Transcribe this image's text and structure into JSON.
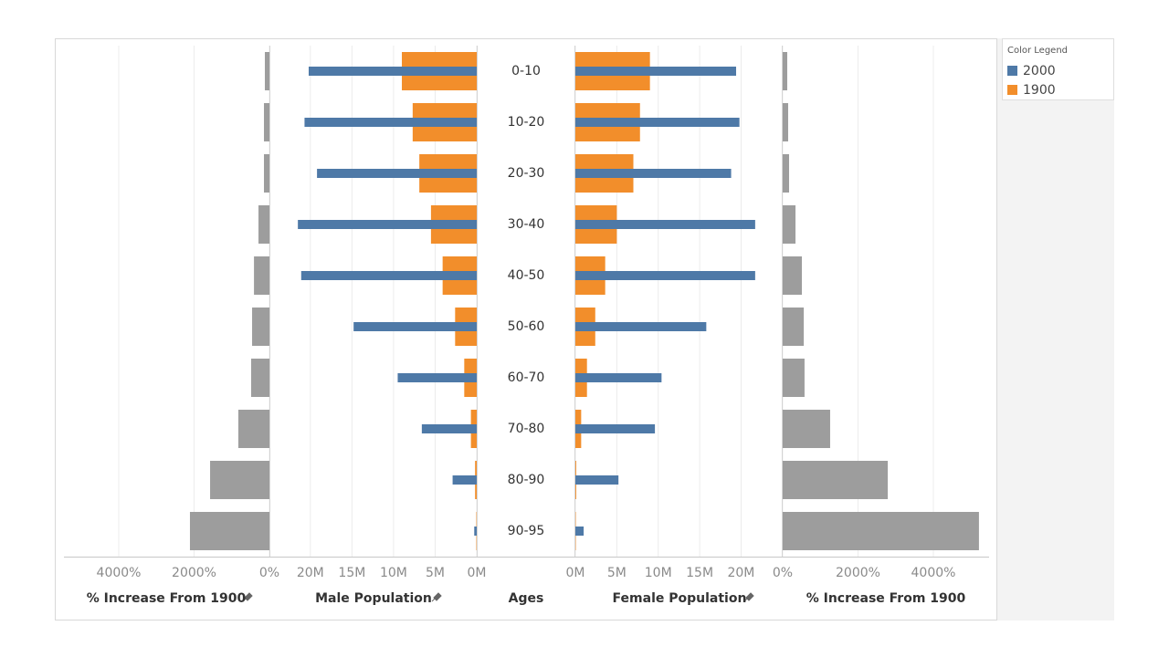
{
  "chart_data": [
    {
      "type": "bar",
      "x_label": "% Increase From 1900",
      "xlim": [
        5455,
        0
      ],
      "xticks": [
        {
          "value": 4000,
          "label": "4000%"
        },
        {
          "value": 2000,
          "label": "2000%"
        },
        {
          "value": 0,
          "label": "0%"
        }
      ],
      "grid": true,
      "color": "#9d9d9d",
      "values": [
        121,
        145,
        145,
        290,
        410,
        460,
        485,
        825,
        1575,
        2110
      ]
    },
    {
      "type": "bar",
      "x_label": "Male Population",
      "xlim": [
        24.7,
        0
      ],
      "xticks": [
        {
          "value": 20,
          "label": "20M"
        },
        {
          "value": 15,
          "label": "15M"
        },
        {
          "value": 10,
          "label": "10M"
        },
        {
          "value": 5,
          "label": "5M"
        },
        {
          "value": 0,
          "label": "0M"
        }
      ],
      "grid": true,
      "series": [
        {
          "name": "2000",
          "color": "#4e79a7",
          "values": [
            20.2,
            20.7,
            19.2,
            21.5,
            21.1,
            14.8,
            9.5,
            6.6,
            2.9,
            0.3
          ]
        },
        {
          "name": "1900",
          "color": "#f28e2b",
          "values": [
            9.0,
            7.7,
            6.9,
            5.5,
            4.1,
            2.6,
            1.5,
            0.7,
            0.2,
            0.05
          ]
        }
      ]
    },
    {
      "type": "labels",
      "x_label": "Ages",
      "categories": [
        "0-10",
        "10-20",
        "20-30",
        "30-40",
        "40-50",
        "50-60",
        "60-70",
        "70-80",
        "80-90",
        "90-95"
      ]
    },
    {
      "type": "bar",
      "x_label": "Female Population",
      "xlim": [
        0,
        24.8
      ],
      "xticks": [
        {
          "value": 0,
          "label": "0M"
        },
        {
          "value": 5,
          "label": "5M"
        },
        {
          "value": 10,
          "label": "10M"
        },
        {
          "value": 15,
          "label": "15M"
        },
        {
          "value": 20,
          "label": "20M"
        }
      ],
      "grid": true,
      "series": [
        {
          "color": "#4e79a7",
          "values": [
            19.4,
            19.8,
            18.8,
            21.7,
            21.7,
            15.8,
            10.4,
            9.6,
            5.2,
            1.0
          ]
        },
        {
          "color": "#f28e2b",
          "values": [
            9.0,
            7.8,
            7.0,
            5.0,
            3.6,
            2.4,
            1.4,
            0.7,
            0.1,
            0.05
          ]
        }
      ]
    },
    {
      "type": "bar",
      "x_label": "% Increase From 1900",
      "xlim": [
        0,
        5479
      ],
      "xticks": [
        {
          "value": 0,
          "label": "0%"
        },
        {
          "value": 2000,
          "label": "2000%"
        },
        {
          "value": 4000,
          "label": "4000%"
        }
      ],
      "grid": true,
      "color": "#9d9d9d",
      "values": [
        121,
        145,
        170,
        340,
        510,
        560,
        580,
        1260,
        2790,
        5210
      ]
    }
  ],
  "legend": {
    "title": "Color Legend"
  }
}
